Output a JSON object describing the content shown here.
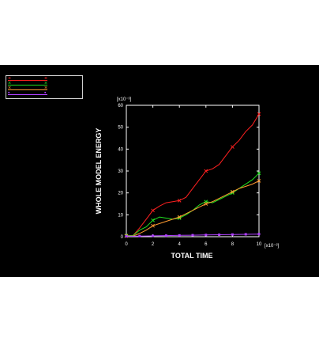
{
  "chart_data": {
    "type": "line",
    "title": "",
    "xlabel": "TOTAL TIME",
    "ylabel": "WHOLE MODEL ENERGY",
    "x_multiplier": "[x10⁻³]",
    "y_multiplier": "[x10⁻³]",
    "xlim": [
      0,
      10
    ],
    "ylim": [
      0,
      60
    ],
    "xticks": [
      "0",
      "2",
      "4",
      "6",
      "8",
      "10"
    ],
    "yticks": [
      "0",
      "10",
      "20",
      "30",
      "40",
      "50",
      "60"
    ],
    "grid": false,
    "legend_position": "top-left",
    "series": [
      {
        "name": "",
        "color": "#ff2020",
        "marker": "x",
        "x": [
          0,
          0.5,
          1,
          1.5,
          2,
          2.5,
          3,
          3.5,
          4,
          4.5,
          5,
          5.5,
          6,
          6.5,
          7,
          7.5,
          8,
          8.5,
          9,
          9.5,
          10
        ],
        "y": [
          0.5,
          0.5,
          4,
          8,
          12,
          14,
          15.5,
          16,
          16.5,
          18,
          22,
          26,
          30,
          31,
          33,
          37,
          41,
          44,
          48,
          51,
          56
        ]
      },
      {
        "name": "",
        "color": "#20e020",
        "marker": "x",
        "x": [
          0,
          0.5,
          1,
          1.5,
          2,
          2.5,
          3,
          3.5,
          4,
          4.5,
          5,
          5.5,
          6,
          6.5,
          7,
          7.5,
          8,
          8.5,
          9,
          9.5,
          10
        ],
        "y": [
          0.5,
          0.5,
          3,
          4.5,
          7.5,
          9,
          8.5,
          8,
          8.5,
          10,
          12,
          14.5,
          16,
          15.5,
          17,
          18.5,
          20,
          22,
          24,
          26,
          29
        ]
      },
      {
        "name": "",
        "color": "#ff9a30",
        "marker": "x",
        "x": [
          0,
          0.5,
          1,
          1.5,
          2,
          2.5,
          3,
          3.5,
          4,
          4.5,
          5,
          5.5,
          6,
          6.5,
          7,
          7.5,
          8,
          8.5,
          9,
          9.5,
          10
        ],
        "y": [
          0.3,
          0.3,
          1.5,
          3,
          5,
          6,
          7,
          8,
          9,
          10.5,
          12,
          13.5,
          15,
          16,
          17.5,
          19,
          20.5,
          22,
          23,
          24,
          25.5
        ]
      },
      {
        "name": "",
        "color": "#b040ff",
        "marker": "square",
        "x": [
          0,
          1,
          2,
          3,
          4,
          5,
          6,
          7,
          8,
          9,
          10
        ],
        "y": [
          0.2,
          0.3,
          0.4,
          0.5,
          0.6,
          0.7,
          0.8,
          0.9,
          1.0,
          1.1,
          1.2
        ]
      }
    ]
  }
}
